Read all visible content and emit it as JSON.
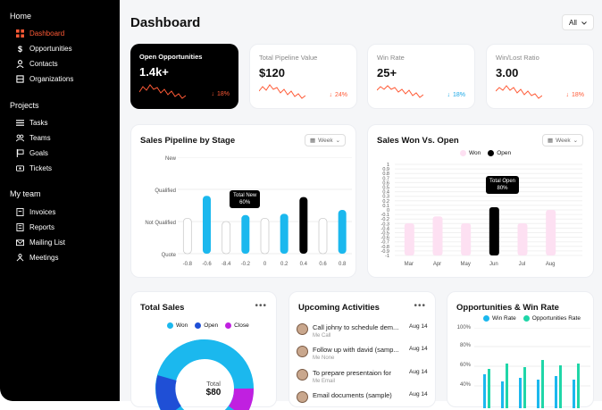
{
  "sidebar": {
    "home_label": "Home",
    "home_items": [
      {
        "label": "Dashboard",
        "icon": "grid-icon",
        "active": true
      },
      {
        "label": "Opportunities",
        "icon": "dollar-icon",
        "active": false
      },
      {
        "label": "Contacts",
        "icon": "user-icon",
        "active": false
      },
      {
        "label": "Organizations",
        "icon": "org-icon",
        "active": false
      }
    ],
    "projects_label": "Projects",
    "project_items": [
      {
        "label": "Tasks",
        "icon": "list-icon"
      },
      {
        "label": "Teams",
        "icon": "team-icon"
      },
      {
        "label": "Goals",
        "icon": "flag-icon"
      },
      {
        "label": "Tickets",
        "icon": "ticket-icon"
      }
    ],
    "team_label": "My team",
    "team_items": [
      {
        "label": "Invoices",
        "icon": "invoice-icon"
      },
      {
        "label": "Reports",
        "icon": "report-icon"
      },
      {
        "label": "Mailing List",
        "icon": "mail-icon"
      },
      {
        "label": "Meetings",
        "icon": "meeting-icon"
      }
    ]
  },
  "header": {
    "title": "Dashboard",
    "filter_label": "All"
  },
  "kpis": [
    {
      "label": "Open Opportunities",
      "value": "1.4k+",
      "change": "18%",
      "direction": "down",
      "color": "#ff5a36"
    },
    {
      "label": "Total Pipeline Value",
      "value": "$120",
      "change": "24%",
      "direction": "down",
      "color": "#ff5a36"
    },
    {
      "label": "Win Rate",
      "value": "25+",
      "change": "18%",
      "direction": "down",
      "color": "#1aa7e6"
    },
    {
      "label": "Win/Lost Ratio",
      "value": "3.00",
      "change": "18%",
      "direction": "down",
      "color": "#ff5a36"
    }
  ],
  "pipeline": {
    "title": "Sales Pipeline by Stage",
    "week_label": "Week",
    "tooltip_title": "Total New",
    "tooltip_value": "60%"
  },
  "won_open": {
    "title": "Sales Won Vs. Open",
    "week_label": "Week",
    "legend": [
      "Won",
      "Open"
    ],
    "tooltip_title": "Total Open",
    "tooltip_value": "80%"
  },
  "chart_data": [
    {
      "type": "bar",
      "title": "Sales Pipeline by Stage",
      "y_categories": [
        "New",
        "Qualified",
        "Not Qualified",
        "Quote"
      ],
      "categories": [
        "-0.8",
        "-0.6",
        "-8.4",
        "-0.2",
        "0",
        "0.2",
        "0.4",
        "0.6",
        "0.8"
      ],
      "values": [
        0.55,
        0.9,
        0.5,
        0.6,
        0.55,
        0.62,
        0.88,
        0.55,
        0.68
      ],
      "colors": [
        "#ffffff",
        "#1bb8ee",
        "#ffffff",
        "#1bb8ee",
        "#ffffff",
        "#1bb8ee",
        "#000000",
        "#ffffff",
        "#1bb8ee"
      ]
    },
    {
      "type": "bar",
      "title": "Sales Won Vs. Open",
      "categories": [
        "Mar",
        "Apr",
        "May",
        "Jun",
        "Jul",
        "Aug"
      ],
      "yticks": [
        1,
        0.9,
        0.8,
        0.7,
        0.6,
        0.5,
        0.4,
        0.3,
        0.2,
        0.1,
        0,
        -0.1,
        -0.2,
        -0.3,
        -0.4,
        -0.5,
        -0.6,
        -0.7,
        -0.8,
        -0.9,
        -1
      ],
      "ylim": [
        -1,
        1
      ],
      "series": [
        {
          "name": "Won",
          "values": [
            0.1,
            0.0,
            0.5,
            0.3,
            0.1,
            0.7
          ]
        },
        {
          "name": "Open",
          "values": [
            null,
            null,
            null,
            0.1,
            null,
            null
          ]
        }
      ]
    },
    {
      "type": "pie",
      "title": "Total Sales",
      "legend": [
        "Won",
        "Open",
        "Close"
      ],
      "center_label": "Total",
      "center_value": "$80"
    },
    {
      "type": "bar",
      "title": "Opportunities & Win Rate",
      "legend": [
        "Win Rate",
        "Opportunities Rate"
      ],
      "yticks": [
        "100%",
        "80%",
        "60%",
        "40%"
      ]
    }
  ],
  "total_sales": {
    "title": "Total Sales",
    "legend": [
      {
        "name": "Won",
        "color": "#1bb8ee"
      },
      {
        "name": "Open",
        "color": "#1f4fd6"
      },
      {
        "name": "Close",
        "color": "#c020e0"
      }
    ],
    "center_label": "Total",
    "center_value": "$80"
  },
  "activities": {
    "title": "Upcoming Activities",
    "items": [
      {
        "title": "Call johny to schedule dem...",
        "sub": "Me Call",
        "date": "Aug 14"
      },
      {
        "title": "Follow up with david (samp...",
        "sub": "Me None",
        "date": "Aug 14"
      },
      {
        "title": "To prepare presentaion for",
        "sub": "Me Email",
        "date": "Aug 14"
      },
      {
        "title": "Email documents (sample)",
        "sub": "",
        "date": "Aug 14"
      }
    ]
  },
  "opp_win": {
    "title": "Opportunities & Win Rate",
    "legend": [
      {
        "name": "Win Rate",
        "color": "#1bb8ee"
      },
      {
        "name": "Opportunities Rate",
        "color": "#1fd6a8"
      }
    ],
    "yticks": [
      "100%",
      "80%",
      "60%",
      "40%"
    ]
  }
}
